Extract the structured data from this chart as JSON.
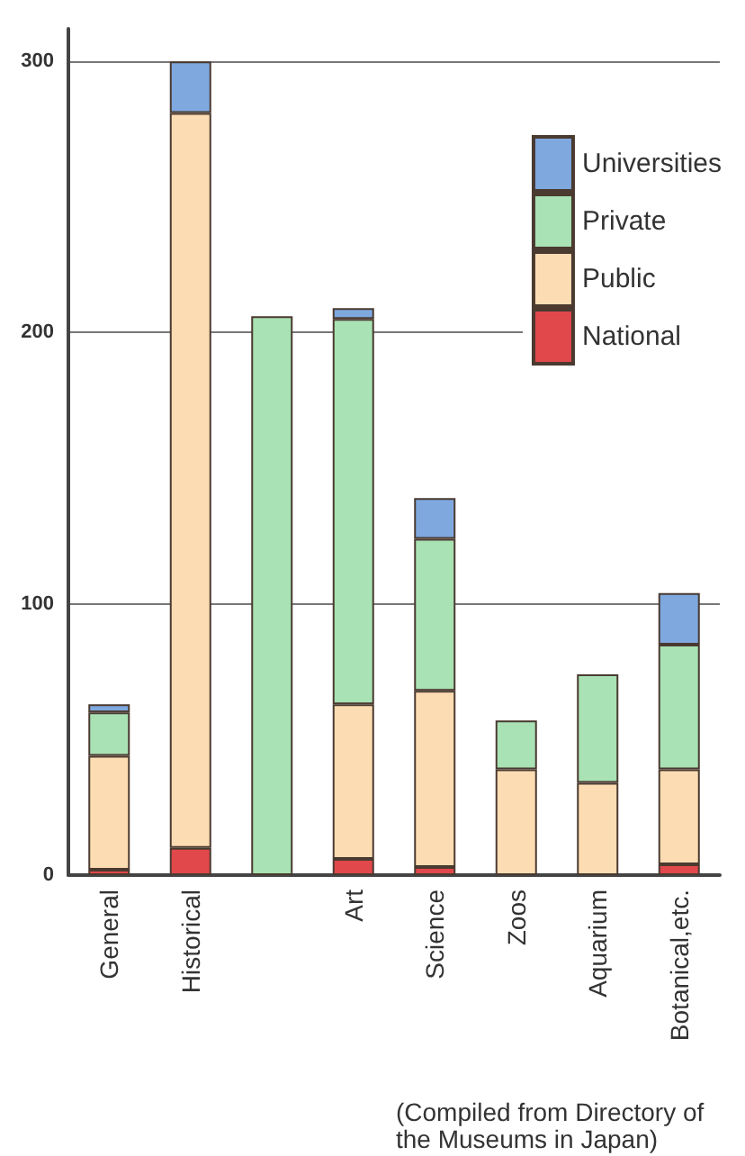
{
  "chart_data": {
    "type": "bar",
    "stacked": true,
    "categories": [
      "General",
      "Historical",
      null,
      "Art",
      "Science",
      "Zoos",
      "Aquarium",
      "Botanical,etc."
    ],
    "series": [
      {
        "name": "National",
        "color": "#e0484c",
        "values": [
          2,
          10,
          null,
          6,
          3,
          0,
          0,
          4
        ]
      },
      {
        "name": "Public",
        "color": "#fcdcb2",
        "values": [
          42,
          271,
          null,
          57,
          65,
          39,
          34,
          35
        ]
      },
      {
        "name": "Private",
        "color": "#a9e2b4",
        "values": [
          16,
          0,
          206,
          142,
          56,
          18,
          40,
          46
        ]
      },
      {
        "name": "Universities",
        "color": "#7ea8de",
        "values": [
          3,
          19,
          null,
          4,
          15,
          0,
          0,
          19
        ]
      }
    ],
    "ylim": [
      0,
      312
    ],
    "yticks": [
      0,
      100,
      200,
      300
    ],
    "grid": "y",
    "legend": "top right",
    "annotations": [
      "(Compiled from Directory of the Museums in Japan)"
    ]
  }
}
